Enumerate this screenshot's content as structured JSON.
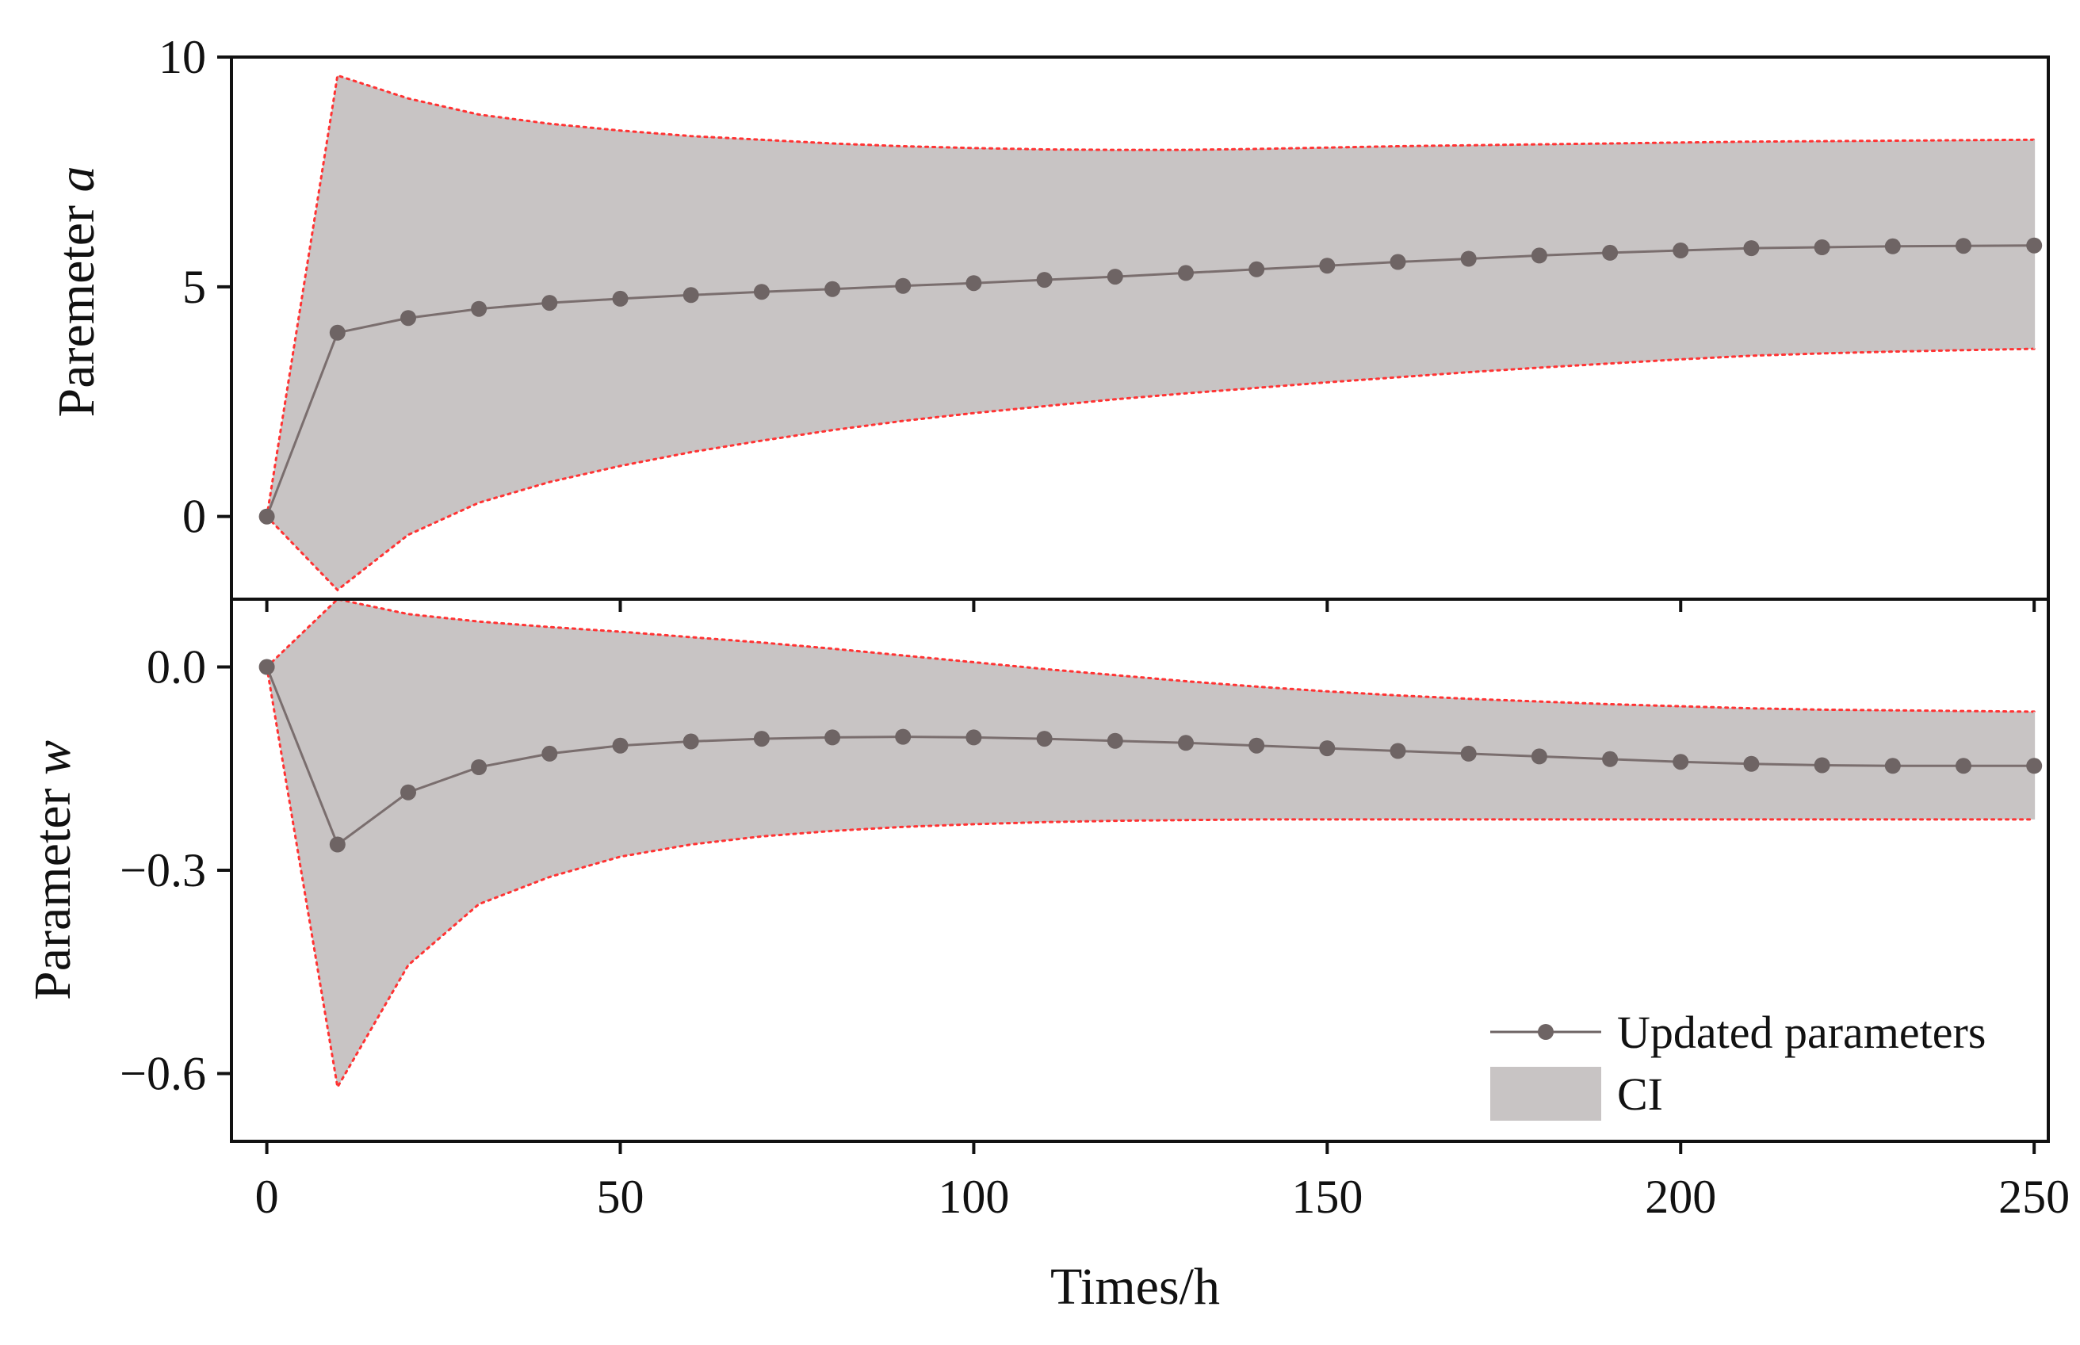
{
  "chart_data": {
    "type": "line",
    "xlabel": "Times/h",
    "x": [
      0,
      10,
      20,
      30,
      40,
      50,
      60,
      70,
      80,
      90,
      100,
      110,
      120,
      130,
      140,
      150,
      160,
      170,
      180,
      190,
      200,
      210,
      220,
      230,
      240,
      250
    ],
    "xlim": [
      -5,
      252
    ],
    "xticks": [
      0,
      50,
      100,
      150,
      200,
      250
    ],
    "xtick_labels": [
      "0",
      "50",
      "100",
      "150",
      "200",
      "250"
    ],
    "legend": {
      "placement": "bottom-right of lower panel",
      "entries": [
        "Updated parameters",
        "CI"
      ]
    },
    "colors": {
      "line": "#7a6e6e",
      "marker": "#6e6464",
      "band": "#c8c4c4",
      "band_edge": "#ff3333",
      "axes": "#111111"
    },
    "panels": [
      {
        "id": "a",
        "ylabel_text": "Paremeter ",
        "ylabel_symbol": "a",
        "ylim": [
          -1.8,
          10
        ],
        "yticks": [
          0,
          5,
          10
        ],
        "ytick_labels": [
          "0",
          "5",
          "10"
        ],
        "series": [
          {
            "name": "Updated parameters",
            "values": [
              0,
              4.0,
              4.32,
              4.52,
              4.65,
              4.74,
              4.82,
              4.89,
              4.95,
              5.02,
              5.08,
              5.15,
              5.22,
              5.3,
              5.38,
              5.46,
              5.54,
              5.61,
              5.68,
              5.74,
              5.79,
              5.84,
              5.86,
              5.88,
              5.89,
              5.9
            ]
          },
          {
            "name": "CI",
            "upper": [
              0,
              9.6,
              9.1,
              8.75,
              8.55,
              8.4,
              8.28,
              8.2,
              8.12,
              8.06,
              8.02,
              7.99,
              7.98,
              7.98,
              8.0,
              8.03,
              8.06,
              8.08,
              8.1,
              8.12,
              8.14,
              8.16,
              8.17,
              8.18,
              8.19,
              8.2
            ],
            "lower": [
              0,
              -1.6,
              -0.4,
              0.3,
              0.75,
              1.1,
              1.4,
              1.65,
              1.88,
              2.08,
              2.25,
              2.4,
              2.55,
              2.68,
              2.8,
              2.92,
              3.03,
              3.14,
              3.24,
              3.33,
              3.42,
              3.5,
              3.55,
              3.59,
              3.62,
              3.65
            ]
          }
        ]
      },
      {
        "id": "w",
        "ylabel_text": "Parameter ",
        "ylabel_symbol": "w",
        "ylim": [
          -0.7,
          0.1
        ],
        "yticks": [
          0.0,
          -0.3,
          -0.6
        ],
        "ytick_labels": [
          "0.0",
          "−0.3",
          "−0.6"
        ],
        "series": [
          {
            "name": "Updated parameters",
            "values": [
              0,
              -0.262,
              -0.185,
              -0.148,
              -0.128,
              -0.116,
              -0.11,
              -0.106,
              -0.104,
              -0.103,
              -0.104,
              -0.106,
              -0.109,
              -0.112,
              -0.116,
              -0.12,
              -0.124,
              -0.128,
              -0.132,
              -0.136,
              -0.14,
              -0.143,
              -0.145,
              -0.146,
              -0.146,
              -0.146
            ]
          },
          {
            "name": "CI",
            "upper": [
              0,
              0.1,
              0.078,
              0.067,
              0.059,
              0.052,
              0.044,
              0.036,
              0.027,
              0.017,
              0.007,
              -0.003,
              -0.012,
              -0.021,
              -0.029,
              -0.036,
              -0.042,
              -0.047,
              -0.051,
              -0.055,
              -0.058,
              -0.061,
              -0.063,
              -0.064,
              -0.065,
              -0.066
            ],
            "lower": [
              0,
              -0.62,
              -0.44,
              -0.35,
              -0.31,
              -0.28,
              -0.262,
              -0.25,
              -0.242,
              -0.236,
              -0.232,
              -0.229,
              -0.227,
              -0.226,
              -0.225,
              -0.225,
              -0.225,
              -0.225,
              -0.225,
              -0.225,
              -0.225,
              -0.225,
              -0.225,
              -0.225,
              -0.225,
              -0.225
            ]
          }
        ]
      }
    ]
  }
}
